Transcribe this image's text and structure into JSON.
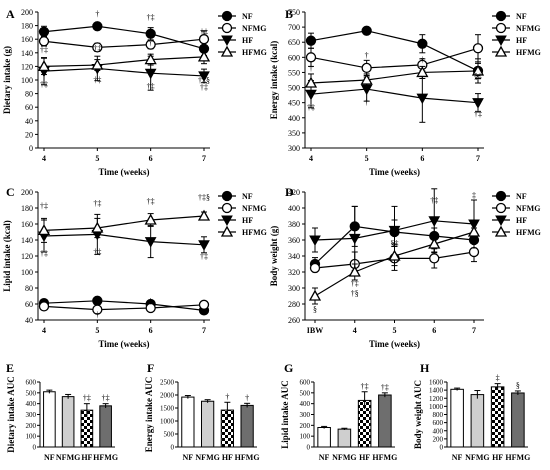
{
  "chart_data": [
    {
      "panel": "A",
      "type": "line",
      "xlabel": "Time (weeks)",
      "ylabel": "Dietary intake (g)",
      "x": [
        4,
        5,
        6,
        7
      ],
      "ylim": [
        0,
        200
      ],
      "yticks": [
        0,
        20,
        40,
        60,
        80,
        100,
        120,
        140,
        160,
        180,
        200
      ],
      "grid": false,
      "legend": "top-right",
      "series": [
        {
          "name": "NF",
          "values": [
            171,
            179,
            168,
            146
          ],
          "errors": [
            8,
            4,
            9,
            10
          ],
          "marker": "circle-filled"
        },
        {
          "name": "NFMG",
          "values": [
            157,
            148,
            152,
            160
          ],
          "errors": [
            7,
            6,
            6,
            12
          ],
          "marker": "circle-open"
        },
        {
          "name": "HF",
          "values": [
            113,
            117,
            110,
            106
          ],
          "errors": [
            20,
            18,
            25,
            10
          ],
          "marker": "triangle-down-filled"
        },
        {
          "name": "HFMG",
          "values": [
            120,
            122,
            130,
            134
          ],
          "errors": [
            12,
            8,
            8,
            10
          ],
          "marker": "triangle-up-open"
        }
      ],
      "annotations": [
        "†‡",
        "†",
        "†‡",
        "†‡",
        "†‡",
        "†‡",
        "†",
        "†‡",
        "†‡§",
        "†‡",
        "†‡"
      ]
    },
    {
      "panel": "B",
      "type": "line",
      "xlabel": "Time (weeks)",
      "ylabel": "Energy intake (kcal)",
      "x": [
        4,
        5,
        6,
        7
      ],
      "ylim": [
        300,
        750
      ],
      "yticks": [
        300,
        350,
        400,
        450,
        500,
        550,
        600,
        650,
        700,
        750
      ],
      "grid": false,
      "legend": "top-right",
      "series": [
        {
          "name": "NF",
          "values": [
            655,
            688,
            645,
            555
          ],
          "errors": [
            25,
            5,
            30,
            40
          ],
          "marker": "circle-filled"
        },
        {
          "name": "NFMG",
          "values": [
            600,
            565,
            575,
            630
          ],
          "errors": [
            30,
            25,
            20,
            45
          ],
          "marker": "circle-open"
        },
        {
          "name": "HF",
          "values": [
            478,
            495,
            465,
            450
          ],
          "errors": [
            45,
            40,
            80,
            30
          ],
          "marker": "triangle-down-filled"
        },
        {
          "name": "HFMG",
          "values": [
            515,
            525,
            550,
            555
          ],
          "errors": [
            30,
            20,
            20,
            25
          ],
          "marker": "triangle-up-open"
        }
      ],
      "annotations": [
        "†‡",
        "†",
        "†",
        "†",
        "§‡",
        "†‡",
        "†"
      ]
    },
    {
      "panel": "C",
      "type": "line",
      "xlabel": "Time (weeks)",
      "ylabel": "Lipid intake (kcal)",
      "x": [
        4,
        5,
        6,
        7
      ],
      "ylim": [
        40,
        200
      ],
      "yticks": [
        40,
        60,
        80,
        100,
        120,
        140,
        160,
        180,
        200
      ],
      "grid": false,
      "legend": "top-right",
      "series": [
        {
          "name": "NF",
          "values": [
            61,
            64,
            60,
            52
          ],
          "errors": [
            2,
            2,
            3,
            3
          ],
          "marker": "circle-filled"
        },
        {
          "name": "NFMG",
          "values": [
            57,
            53,
            55,
            59
          ],
          "errors": [
            3,
            2,
            2,
            4
          ],
          "marker": "circle-open"
        },
        {
          "name": "HF",
          "values": [
            145,
            147,
            138,
            134
          ],
          "errors": [
            20,
            25,
            20,
            10
          ],
          "marker": "triangle-down-filled"
        },
        {
          "name": "HFMG",
          "values": [
            152,
            155,
            165,
            170
          ],
          "errors": [
            15,
            12,
            8,
            5
          ],
          "marker": "triangle-up-open"
        }
      ],
      "annotations": [
        "†‡",
        "†‡",
        "†‡",
        "†‡§",
        "†‡",
        "†‡",
        "†‡",
        "†",
        "†"
      ]
    },
    {
      "panel": "D",
      "type": "line",
      "xlabel": "Time (weeks)",
      "ylabel": "Body weight (g)",
      "categories": [
        "IBW",
        "4",
        "5",
        "6",
        "7"
      ],
      "ylim": [
        260,
        420
      ],
      "yticks": [
        260,
        280,
        300,
        320,
        340,
        360,
        380,
        400,
        420
      ],
      "grid": false,
      "legend": "top-right",
      "series": [
        {
          "name": "NF",
          "values": [
            330,
            377,
            370,
            365,
            360
          ],
          "errors": [
            8,
            25,
            15,
            10,
            15
          ],
          "marker": "circle-filled"
        },
        {
          "name": "NFMG",
          "values": [
            325,
            330,
            337,
            337,
            345
          ],
          "errors": [
            5,
            15,
            15,
            12,
            12
          ],
          "marker": "circle-open"
        },
        {
          "name": "HF",
          "values": [
            360,
            362,
            372,
            384,
            380
          ],
          "errors": [
            15,
            40,
            30,
            40,
            30
          ],
          "marker": "triangle-down-filled"
        },
        {
          "name": "HFMG",
          "values": [
            290,
            320,
            340,
            355,
            370
          ],
          "errors": [
            10,
            10,
            12,
            10,
            10
          ],
          "marker": "triangle-up-open"
        }
      ],
      "annotations": [
        "§",
        "†‡",
        "†§",
        "§‡",
        "†‡",
        "‡"
      ]
    },
    {
      "panel": "E",
      "type": "bar",
      "ylabel": "Dietary intake AUC",
      "categories": [
        "NF",
        "NFMG",
        "HF",
        "HFMG"
      ],
      "values": [
        510,
        465,
        340,
        380
      ],
      "errors": [
        15,
        20,
        60,
        20
      ],
      "fills": [
        "white",
        "lightgray",
        "checker",
        "darkgray"
      ],
      "ylim": [
        0,
        600
      ],
      "yticks": [
        0,
        100,
        200,
        300,
        400,
        500,
        600
      ],
      "annotations": [
        "",
        "",
        "†‡",
        "†‡"
      ]
    },
    {
      "panel": "F",
      "type": "bar",
      "ylabel": "Energy intake AUC",
      "categories": [
        "NF",
        "NFMG",
        "HF",
        "HFMG"
      ],
      "values": [
        1920,
        1760,
        1420,
        1600
      ],
      "errors": [
        60,
        60,
        300,
        80
      ],
      "fills": [
        "white",
        "lightgray",
        "checker",
        "darkgray"
      ],
      "ylim": [
        0,
        2500
      ],
      "yticks": [
        0,
        500,
        1000,
        1500,
        2000,
        2500
      ],
      "annotations": [
        "",
        "",
        "†",
        "†"
      ]
    },
    {
      "panel": "G",
      "type": "bar",
      "ylabel": "Lipid intake AUC",
      "categories": [
        "NF",
        "NFMG",
        "HF",
        "HFMG"
      ],
      "values": [
        180,
        165,
        430,
        480
      ],
      "errors": [
        10,
        8,
        80,
        20
      ],
      "fills": [
        "white",
        "lightgray",
        "checker",
        "darkgray"
      ],
      "ylim": [
        0,
        600
      ],
      "yticks": [
        0,
        100,
        200,
        300,
        400,
        500,
        600
      ],
      "annotations": [
        "",
        "",
        "†‡",
        "†‡"
      ]
    },
    {
      "panel": "H",
      "type": "bar",
      "ylabel": "Body weight AUC",
      "categories": [
        "NF",
        "NFMG",
        "HF",
        "HFMG"
      ],
      "values": [
        1420,
        1290,
        1480,
        1330
      ],
      "errors": [
        30,
        100,
        80,
        50
      ],
      "fills": [
        "white",
        "lightgray",
        "checker",
        "darkgray"
      ],
      "ylim": [
        0,
        1600
      ],
      "yticks": [
        0,
        200,
        400,
        600,
        800,
        1000,
        1200,
        1400,
        1600
      ],
      "annotations": [
        "",
        "",
        "‡",
        "§"
      ]
    }
  ]
}
